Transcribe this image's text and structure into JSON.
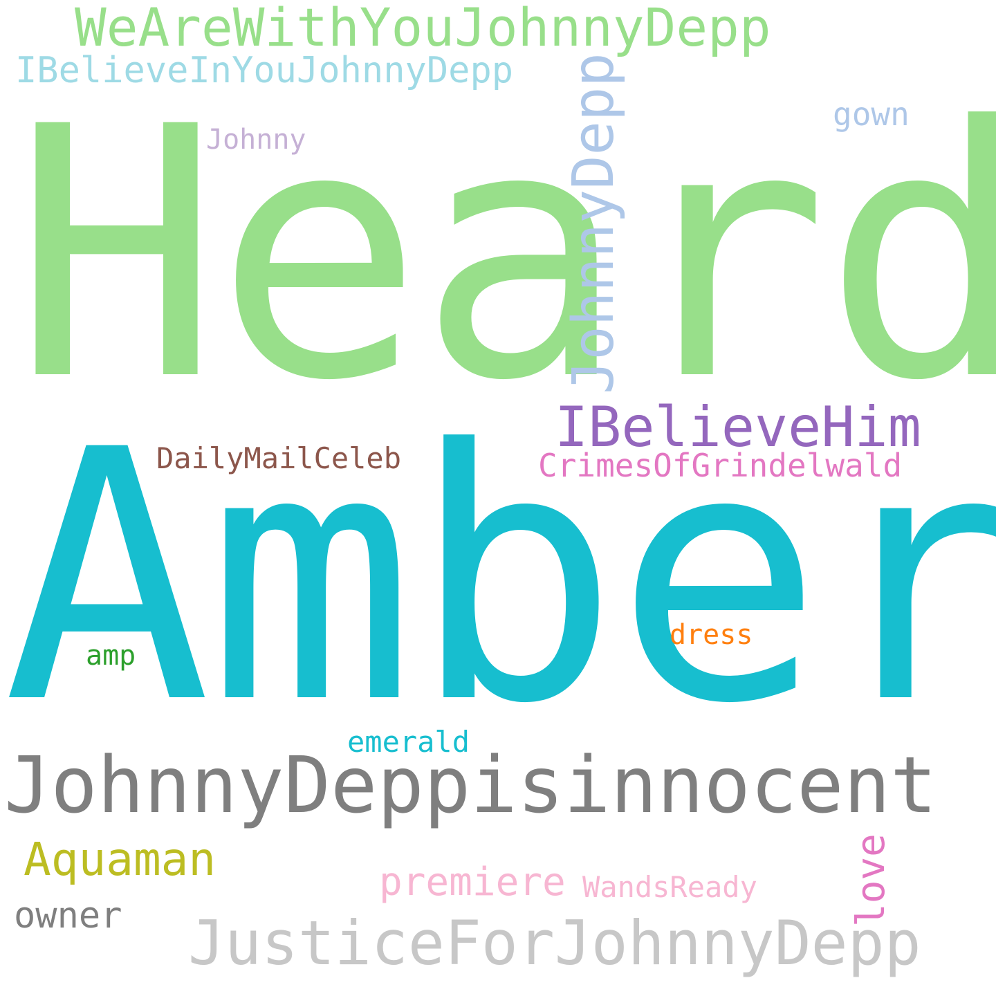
{
  "words": {
    "heard": {
      "text": "Heard",
      "color": "#98df8a"
    },
    "amber": {
      "text": "Amber",
      "color": "#17becf"
    },
    "we_are_with_you": {
      "text": "WeAreWithYouJohnnyDepp",
      "color": "#98df8a"
    },
    "i_believe_in_you": {
      "text": "IBelieveInYouJohnnyDepp",
      "color": "#9edae5"
    },
    "johnny_depp": {
      "text": "JohnnyDepp",
      "color": "#aec7e8"
    },
    "gown": {
      "text": "gown",
      "color": "#aec7e8"
    },
    "johnny": {
      "text": "Johnny",
      "color": "#c5b0d5"
    },
    "i_believe_him": {
      "text": "IBelieveHim",
      "color": "#9467bd"
    },
    "daily_mail_celeb": {
      "text": "DailyMailCeleb",
      "color": "#8c564b"
    },
    "crimes_of_grindelwald": {
      "text": "CrimesOfGrindelwald",
      "color": "#e377c2"
    },
    "dress": {
      "text": "dress",
      "color": "#ff7f0e"
    },
    "amp": {
      "text": "amp",
      "color": "#2ca02c"
    },
    "emerald": {
      "text": "emerald",
      "color": "#17becf"
    },
    "johnny_depp_is_innocent": {
      "text": "JohnnyDeppisinnocent",
      "color": "#7f7f7f"
    },
    "aquaman": {
      "text": "Aquaman",
      "color": "#bcbd22"
    },
    "love": {
      "text": "love",
      "color": "#e377c2"
    },
    "premiere": {
      "text": "premiere",
      "color": "#f7b6d2"
    },
    "wands_ready": {
      "text": "WandsReady",
      "color": "#f7b6d2"
    },
    "owner": {
      "text": "owner",
      "color": "#7f7f7f"
    },
    "justice_for_johnny_depp": {
      "text": "JusticeForJohnnyDepp",
      "color": "#c7c7c7"
    }
  }
}
